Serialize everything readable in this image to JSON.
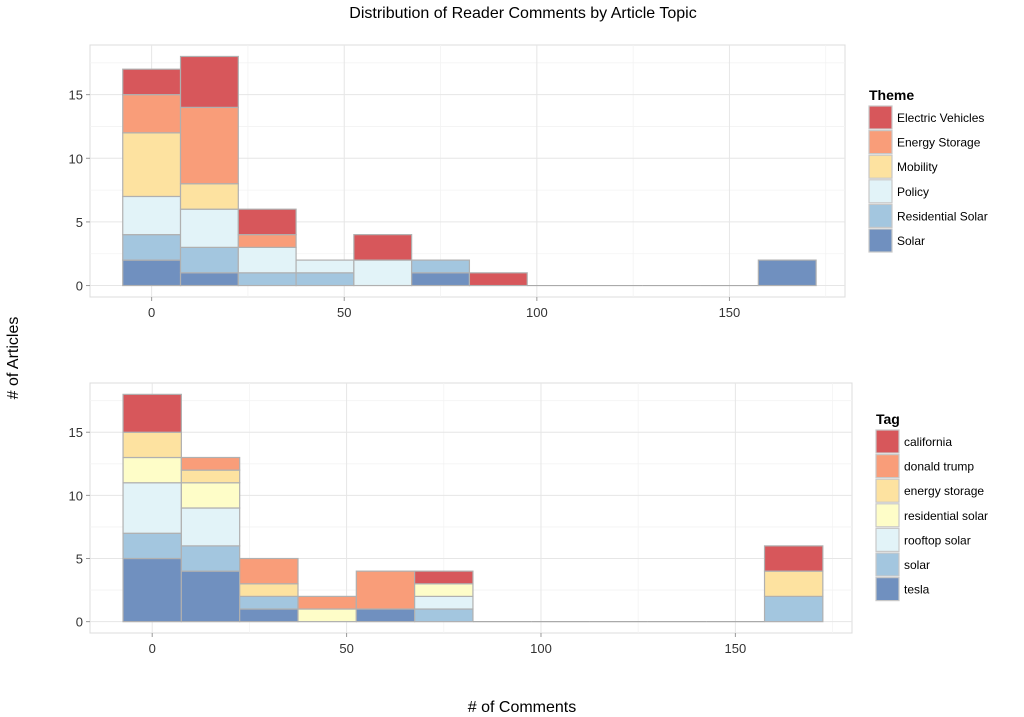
{
  "title": "Distribution of Reader Comments by Article Topic",
  "xlabel": "# of Comments",
  "ylabel": "# of Articles",
  "chart_data": [
    {
      "type": "bar",
      "stacked": true,
      "title": "Distribution of Reader Comments by Article Topic",
      "xlabel": "# of Comments",
      "ylabel": "# of Articles",
      "bin_width": 15,
      "x": [
        0,
        15,
        30,
        45,
        60,
        75,
        90,
        105,
        120,
        135,
        150,
        165
      ],
      "xlim": [
        -16,
        180
      ],
      "ylim": [
        -0.9,
        18.9
      ],
      "xticks": [
        0,
        50,
        100,
        150
      ],
      "yticks": [
        0,
        5,
        10,
        15
      ],
      "grid": true,
      "legend_title": "Theme",
      "legend_position": "right",
      "series": [
        {
          "name": "Electric Vehicles",
          "color": "#d7575b",
          "values": [
            2,
            4,
            2,
            0,
            2,
            0,
            1,
            0,
            0,
            0,
            0,
            0
          ]
        },
        {
          "name": "Energy Storage",
          "color": "#f99d79",
          "values": [
            3,
            6,
            1,
            0,
            0,
            0,
            0,
            0,
            0,
            0,
            0,
            0
          ]
        },
        {
          "name": "Mobility",
          "color": "#fde2a0",
          "values": [
            5,
            2,
            0,
            0,
            0,
            0,
            0,
            0,
            0,
            0,
            0,
            0
          ]
        },
        {
          "name": "Policy",
          "color": "#e2f3f8",
          "values": [
            3,
            3,
            2,
            1,
            2,
            0,
            0,
            0,
            0,
            0,
            0,
            0
          ]
        },
        {
          "name": "Residential Solar",
          "color": "#a3c6df",
          "values": [
            2,
            2,
            1,
            1,
            0,
            1,
            0,
            0,
            0,
            0,
            0,
            0
          ]
        },
        {
          "name": "Solar",
          "color": "#7090bf",
          "values": [
            2,
            1,
            0,
            0,
            0,
            1,
            0,
            0,
            0,
            0,
            0,
            2
          ]
        }
      ]
    },
    {
      "type": "bar",
      "stacked": true,
      "title": "",
      "xlabel": "# of Comments",
      "ylabel": "# of Articles",
      "bin_width": 15,
      "x": [
        0,
        15,
        30,
        45,
        60,
        75,
        90,
        105,
        120,
        135,
        150,
        165
      ],
      "xlim": [
        -16,
        180
      ],
      "ylim": [
        -0.9,
        18.9
      ],
      "xticks": [
        0,
        50,
        100,
        150
      ],
      "yticks": [
        0,
        5,
        10,
        15
      ],
      "grid": true,
      "legend_title": "Tag",
      "legend_position": "right",
      "series": [
        {
          "name": "california",
          "color": "#d7575b",
          "values": [
            3,
            0,
            0,
            0,
            0,
            1,
            0,
            0,
            0,
            0,
            0,
            2
          ]
        },
        {
          "name": "donald trump",
          "color": "#f99d79",
          "values": [
            0,
            1,
            2,
            1,
            3,
            0,
            0,
            0,
            0,
            0,
            0,
            0
          ]
        },
        {
          "name": "energy storage",
          "color": "#fde2a0",
          "values": [
            2,
            1,
            1,
            0,
            0,
            0,
            0,
            0,
            0,
            0,
            0,
            2
          ]
        },
        {
          "name": "residential solar",
          "color": "#fefdc8",
          "values": [
            2,
            2,
            0,
            1,
            0,
            1,
            0,
            0,
            0,
            0,
            0,
            0
          ]
        },
        {
          "name": "rooftop solar",
          "color": "#e2f3f8",
          "values": [
            4,
            3,
            0,
            0,
            0,
            1,
            0,
            0,
            0,
            0,
            0,
            0
          ]
        },
        {
          "name": "solar",
          "color": "#a3c6df",
          "values": [
            2,
            2,
            1,
            0,
            0,
            1,
            0,
            0,
            0,
            0,
            0,
            2
          ]
        },
        {
          "name": "tesla",
          "color": "#7090bf",
          "values": [
            5,
            4,
            1,
            0,
            1,
            0,
            0,
            0,
            0,
            0,
            0,
            0
          ]
        }
      ]
    }
  ]
}
